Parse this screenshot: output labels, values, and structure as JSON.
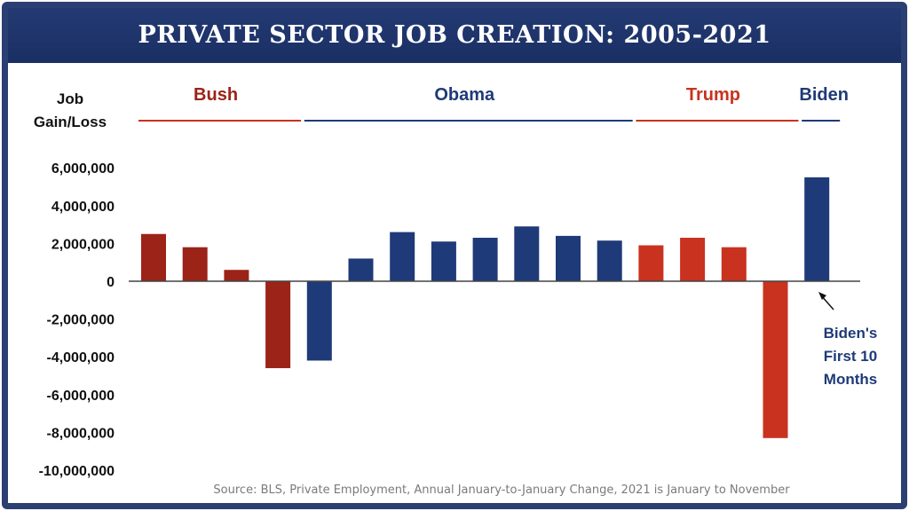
{
  "title": "PRIVATE SECTOR JOB CREATION: 2005-2021",
  "source": "Source: BLS, Private Employment, Annual January-to-January Change, 2021 is January to November",
  "annotation": [
    "Biden's",
    "First 10",
    "Months"
  ],
  "colors": {
    "bush": "#9b2318",
    "obama": "#1f3a78",
    "trump": "#c8321f",
    "biden": "#1f3a78",
    "frame": "#2b3f73"
  },
  "chart_data": {
    "type": "bar",
    "title": "PRIVATE SECTOR JOB CREATION: 2005-2021",
    "ylabel": [
      "Job",
      "Gain/Loss"
    ],
    "ylim": [
      -10000000,
      6000000
    ],
    "yticks": [
      6000000,
      4000000,
      2000000,
      0,
      -2000000,
      -4000000,
      -6000000,
      -8000000,
      -10000000
    ],
    "ytick_labels": [
      "6,000,000",
      "4,000,000",
      "2,000,000",
      "0",
      "-2,000,000",
      "-4,000,000",
      "-6,000,000",
      "-8,000,000",
      "-10,000,000"
    ],
    "groups": [
      {
        "name": "Bush",
        "color_key": "bush",
        "values": [
          2500000,
          1800000,
          600000,
          -4600000
        ]
      },
      {
        "name": "Obama",
        "color_key": "obama",
        "values": [
          -4200000,
          1200000,
          2600000,
          2100000,
          2300000,
          2900000,
          2400000,
          2150000
        ]
      },
      {
        "name": "Trump",
        "color_key": "trump",
        "values": [
          1900000,
          2300000,
          1800000,
          -8300000
        ]
      },
      {
        "name": "Biden",
        "color_key": "biden",
        "values": [
          5500000
        ]
      }
    ]
  }
}
